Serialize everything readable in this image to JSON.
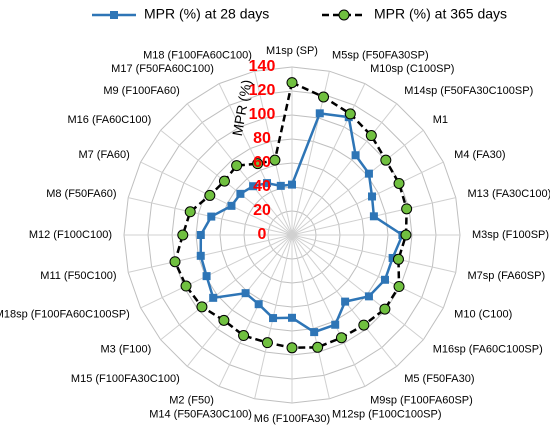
{
  "chart_data": {
    "type": "radar",
    "axis_label": "MPR (%)",
    "categories": [
      "M1sp (SP)",
      "M5sp (F50FA30SP)",
      "M10sp (C100SP)",
      "M14sp (F50FA30C100SP)",
      "M1",
      "M4 (FA30)",
      "M13 (FA30C100)",
      "M3sp (F100SP)",
      "M7sp (FA60SP)",
      "M10 (C100)",
      "M16sp (FA60C100SP)",
      "M5 (F50FA30)",
      "M9sp (F100FA60SP)",
      "M12sp (F100C100SP)",
      "M6 (F100FA30)",
      "M14 (F50FA30C100)",
      "M2 (F50)",
      "M15 (F100FA30C100)",
      "M3 (F100)",
      "M18sp (F100FA60C100SP)",
      "M11 (F50C100)",
      "M12 (F100C100)",
      "M8 (F50FA60)",
      "M7 (FA60)",
      "M16 (FA60C100)",
      "M9 (F100FA60)",
      "M17 (F50FA60C100)",
      "M18 (F100FA60C100)"
    ],
    "series": [
      {
        "name": "MPR (%) at 28 days",
        "color": "#2e75b6",
        "marker": "square",
        "dashed": false,
        "values": [
          42,
          104,
          109,
          85,
          82,
          74,
          70,
          92,
          86,
          86,
          82,
          71,
          83,
          83,
          69,
          71,
          64,
          62,
          84,
          79,
          78,
          76,
          69,
          56,
          55,
          52,
          48,
          42
        ]
      },
      {
        "name": "MPR (%) at 365 days",
        "color": "#000000",
        "marker_color": "#70c040",
        "marker": "circle",
        "dashed": true,
        "values": [
          127,
          118,
          112,
          106,
          100,
          99,
          98,
          95,
          91,
          99,
          99,
          96,
          95,
          96,
          94,
          92,
          93,
          91,
          96,
          98,
          100,
          91,
          87,
          76,
          72,
          74,
          66,
          64
        ]
      }
    ],
    "rlim": [
      0,
      140
    ],
    "rticks": [
      0,
      20,
      40,
      60,
      80,
      100,
      120,
      140
    ],
    "tick_label_color": "#ff0000",
    "grid": true
  }
}
